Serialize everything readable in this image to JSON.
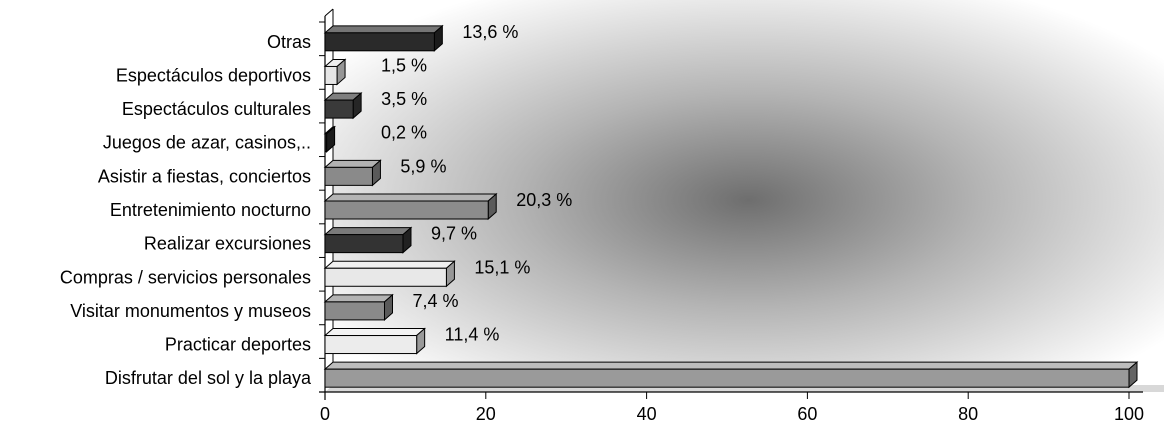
{
  "chart_data": {
    "type": "bar",
    "orientation": "horizontal",
    "title": "",
    "xlabel": "",
    "ylabel": "",
    "categories": [
      "Otras",
      "Espectáculos deportivos",
      "Espectáculos culturales",
      "Juegos de azar, casinos,..",
      "Asistir a fiestas, conciertos",
      "Entretenimiento nocturno",
      "Realizar excursiones",
      "Compras / servicios personales",
      "Visitar monumentos y museos",
      "Practicar deportes",
      "Disfrutar del sol y la playa"
    ],
    "values": [
      13.6,
      1.5,
      3.5,
      0.2,
      5.9,
      20.3,
      9.7,
      15.1,
      7.4,
      11.4,
      100
    ],
    "data_labels": [
      "13,6 %",
      "1,5 %",
      "3,5 %",
      "0,2 %",
      "5,9  %",
      "20,3 %",
      "9,7  %",
      "15,1  %",
      "7,4  %",
      "11,4 %",
      ""
    ],
    "bar_colors": [
      "#2a2a2a",
      "#e6e6e6",
      "#3a3a3a",
      "#2a2a2a",
      "#8a8a8a",
      "#8c8c8c",
      "#333333",
      "#e8e8e8",
      "#8a8a8a",
      "#ececec",
      "#9a9a9a"
    ],
    "xlim": [
      0,
      100
    ],
    "xticks": [
      0,
      20,
      40,
      60,
      80,
      100
    ],
    "grid": false,
    "legend": "none"
  }
}
